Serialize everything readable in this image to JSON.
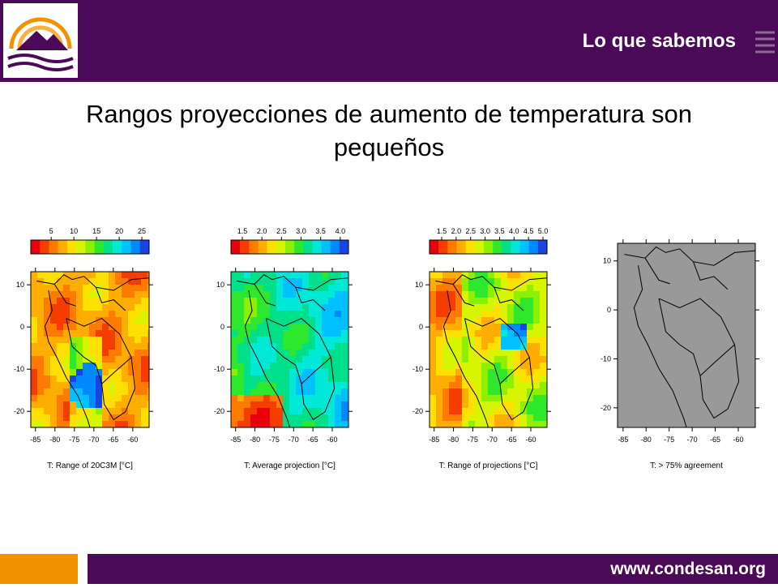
{
  "header": {
    "section": "Lo que sabemos"
  },
  "title": "Rangos proyecciones de aumento de temperatura son pequeños",
  "panels": [
    {
      "caption": "T: Range of 20C3M [°C]",
      "colorbar": {
        "lim": [
          0.5,
          26.6
        ],
        "ticks": [
          5,
          10,
          15,
          20,
          25
        ]
      },
      "xlim": [
        -86.2,
        -55.8
      ],
      "ylim": [
        -23.8,
        13.1
      ],
      "xticks": [
        -85,
        -80,
        -75,
        -70,
        -65,
        -60
      ],
      "yticks": [
        10,
        0,
        -10,
        -20
      ]
    },
    {
      "caption": "T: Average projection [°C]",
      "colorbar": {
        "lim": [
          1.21,
          4.21
        ],
        "ticks": [
          1.5,
          {
            "value": 2,
            "label": "2.0"
          },
          2.5,
          {
            "value": 3,
            "label": "3.0"
          },
          3.5,
          {
            "value": 4,
            "label": "4.0"
          }
        ]
      },
      "xlim": [
        -86.2,
        -55.8
      ],
      "ylim": [
        -23.8,
        13.1
      ],
      "xticks": [
        -85,
        -80,
        -75,
        -70,
        -65,
        -60
      ],
      "yticks": [
        10,
        0,
        -10,
        -20
      ]
    },
    {
      "caption": "T: Range of projections [°C]",
      "colorbar": {
        "lim": [
          1.08,
          5.14
        ],
        "ticks": [
          1.5,
          {
            "value": 2,
            "label": "2.0"
          },
          2.5,
          {
            "value": 3,
            "label": "3.0"
          },
          3.5,
          {
            "value": 4,
            "label": "4.0"
          },
          4.5,
          {
            "value": 5,
            "label": "5.0"
          }
        ]
      },
      "xlim": [
        -86.2,
        -55.8
      ],
      "ylim": [
        -23.8,
        13.1
      ],
      "xticks": [
        -85,
        -80,
        -75,
        -70,
        -65,
        -60
      ],
      "yticks": [
        10,
        0,
        -10,
        -20
      ]
    },
    {
      "caption": "T: > 75% agreement",
      "xlim": [
        -86.2,
        -56.3
      ],
      "ylim": [
        -24,
        13.6
      ],
      "xticks": [
        -85,
        -80,
        -75,
        -70,
        -65,
        -60
      ],
      "yticks": [
        10,
        0,
        -10,
        -20
      ]
    }
  ],
  "footer": {
    "url": "www.condesan.org"
  }
}
